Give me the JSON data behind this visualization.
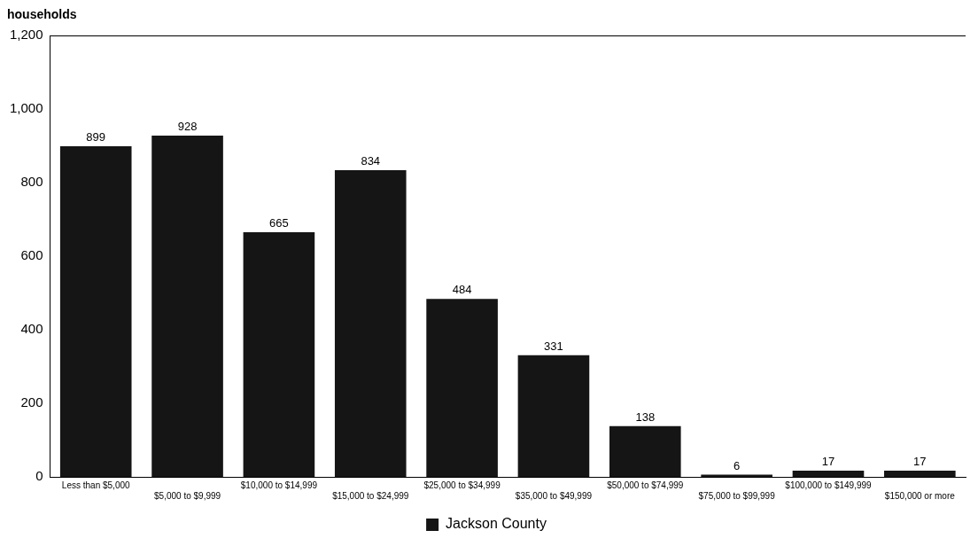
{
  "chart_data": {
    "type": "bar",
    "ylabel": "households",
    "categories": [
      "Less than $5,000",
      "$5,000 to $9,999",
      "$10,000 to $14,999",
      "$15,000 to $24,999",
      "$25,000 to $34,999",
      "$35,000 to $49,999",
      "$50,000 to $74,999",
      "$75,000 to $99,999",
      "$100,000 to $149,999",
      "$150,000 or more"
    ],
    "series": [
      {
        "name": "Jackson County",
        "color": "#151515",
        "values": [
          899,
          928,
          665,
          834,
          484,
          331,
          138,
          6,
          17,
          17
        ]
      }
    ],
    "ylim": [
      0,
      1200
    ],
    "yticks": [
      {
        "value": 0,
        "label": "0"
      },
      {
        "value": 200,
        "label": "200"
      },
      {
        "value": 400,
        "label": "400"
      },
      {
        "value": 600,
        "label": "600"
      },
      {
        "value": 800,
        "label": "800"
      },
      {
        "value": 1000,
        "label": "1,000"
      },
      {
        "value": 1200,
        "label": "1,200"
      }
    ],
    "grid": false,
    "legend": "bottom",
    "data_labels": true
  }
}
